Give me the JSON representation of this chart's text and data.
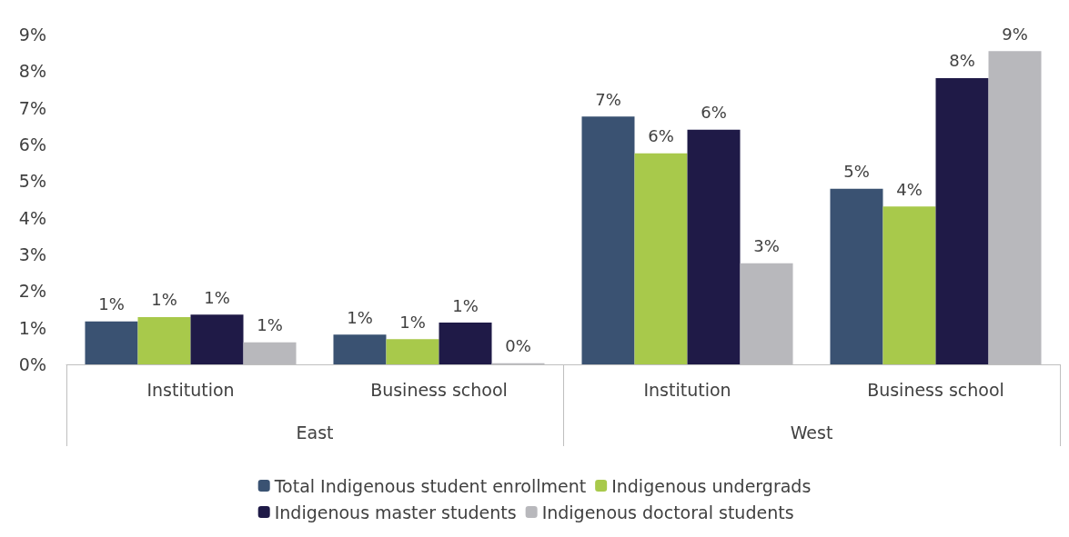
{
  "chart_data": {
    "type": "bar",
    "categories": [
      "Institution",
      "Business school",
      "Institution",
      "Business school"
    ],
    "annotations": [
      "East",
      "West"
    ],
    "ylim": [
      0,
      9
    ],
    "yticks": [
      {
        "value": 0,
        "label": "0%"
      },
      {
        "value": 1,
        "label": "1%"
      },
      {
        "value": 2,
        "label": "2%"
      },
      {
        "value": 3,
        "label": "3%"
      },
      {
        "value": 4,
        "label": "4%"
      },
      {
        "value": 5,
        "label": "5%"
      },
      {
        "value": 6,
        "label": "6%"
      },
      {
        "value": 7,
        "label": "7%"
      },
      {
        "value": 8,
        "label": "8%"
      },
      {
        "value": 9,
        "label": "9%"
      }
    ],
    "series": [
      {
        "name": "Total Indigenous student enrollment",
        "color": "#3a5272",
        "values": [
          1.17,
          0.81,
          6.76,
          4.79
        ],
        "value_labels": [
          "1%",
          "1%",
          "7%",
          "5%"
        ]
      },
      {
        "name": "Indigenous undergrads",
        "color": "#a8c94b",
        "values": [
          1.29,
          0.69,
          5.76,
          4.31
        ],
        "value_labels": [
          "1%",
          "1%",
          "6%",
          "4%"
        ]
      },
      {
        "name": "Indigenous master students",
        "color": "#1f1a47",
        "values": [
          1.36,
          1.14,
          6.4,
          7.81
        ],
        "value_labels": [
          "1%",
          "1%",
          "6%",
          "8%"
        ]
      },
      {
        "name": "Indigenous doctoral students",
        "color": "#b8b8bc",
        "values": [
          0.6,
          0.03,
          2.76,
          8.55
        ],
        "value_labels": [
          "1%",
          "0%",
          "3%",
          "9%"
        ]
      }
    ],
    "grid": false,
    "legend": "bottom"
  }
}
